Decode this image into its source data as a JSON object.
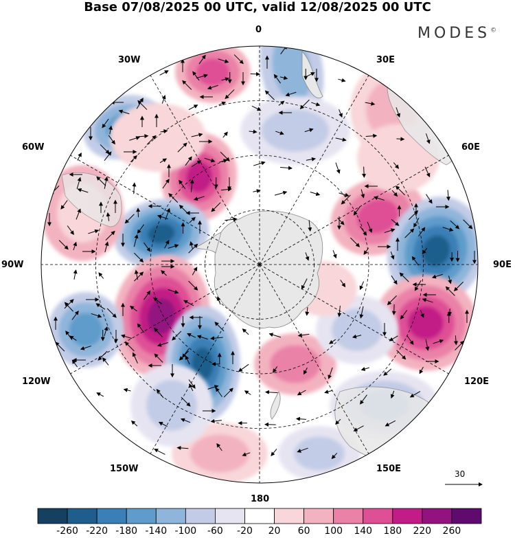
{
  "title": "Base 07/08/2025 00 UTC, valid 12/08/2025 00 UTC",
  "brand": "MODES",
  "brand_mark": "©",
  "longitude_labels": {
    "n0": "0",
    "n30e": "30E",
    "n60e": "60E",
    "n90e": "90E",
    "n120e": "120E",
    "n150e": "150E",
    "n180": "180",
    "n150w": "150W",
    "n120w": "120W",
    "n90w": "90W",
    "n60w": "60W",
    "n30w": "30W"
  },
  "reference_vector": "30",
  "colorbar": {
    "ticks": [
      "-260",
      "-220",
      "-180",
      "-140",
      "-100",
      "-60",
      "-20",
      "20",
      "60",
      "100",
      "140",
      "180",
      "220",
      "260"
    ],
    "colors": [
      "#15405f",
      "#1f5e8c",
      "#3a7fb6",
      "#5f9ccb",
      "#8fb5da",
      "#c2cce6",
      "#e6e4f1",
      "#ffffff",
      "#f8d6d9",
      "#f3b2c0",
      "#ea82a8",
      "#df4f95",
      "#c21d86",
      "#92137f",
      "#5e0a6f"
    ]
  },
  "colors": {
    "land": "#e8e8e8",
    "background": "#ffffff",
    "grid": "#000000"
  }
}
